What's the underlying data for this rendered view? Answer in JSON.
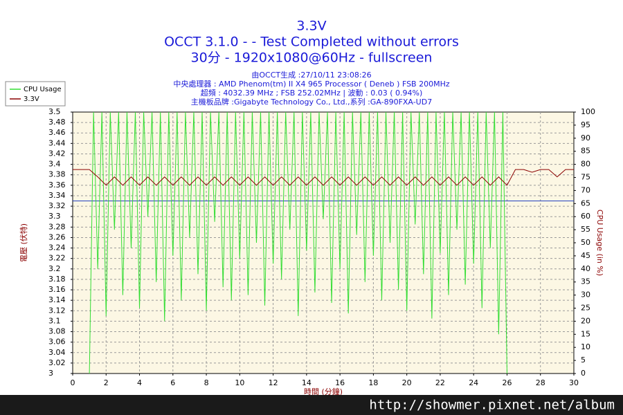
{
  "chart_data": {
    "type": "line",
    "title": "3.3V",
    "subtitle": [
      "OCCT 3.1.0 -  - Test Completed without errors",
      "30分 - 1920x1080@60Hz - fullscreen"
    ],
    "info": [
      "由OCCT生成 :27/10/11 23:08:26",
      "中央處理器 : AMD Phenom(tm) II X4 965 Processor ( Deneb ) FSB 200MHz",
      "超頻 : 4032.39 MHz ; FSB 252.02MHz | 波動 : 0.03 ( 0.94%)",
      "主機板品牌 :Gigabyte Technology Co., Ltd.,系列 :GA-890FXA-UD7"
    ],
    "xlabel": "時間 (分鐘)",
    "ylabel": "電壓 (伏特)",
    "y2label": "CPU Usage (in %)",
    "watermark": "http://showmer.pixnet.net/album",
    "xlim": [
      0,
      30
    ],
    "xticks": [
      0,
      2,
      4,
      6,
      8,
      10,
      12,
      14,
      16,
      18,
      20,
      22,
      24,
      26,
      28,
      30
    ],
    "ylim": [
      3,
      3.5
    ],
    "yticks": [
      3,
      3.02,
      3.04,
      3.06,
      3.08,
      3.1,
      3.12,
      3.14,
      3.16,
      3.18,
      3.2,
      3.22,
      3.24,
      3.26,
      3.28,
      3.3,
      3.32,
      3.34,
      3.36,
      3.38,
      3.4,
      3.42,
      3.44,
      3.46,
      3.48,
      3.5
    ],
    "y2lim": [
      0,
      100
    ],
    "y2ticks": [
      0,
      5,
      10,
      15,
      20,
      25,
      30,
      35,
      40,
      45,
      50,
      55,
      60,
      65,
      70,
      75,
      80,
      85,
      90,
      95,
      100
    ],
    "grid": true,
    "hlines": [
      {
        "value": 3.33,
        "color": "#2040c0"
      }
    ],
    "series": [
      {
        "name": "CPU Usage",
        "color": "#33dd33",
        "axis": "y2",
        "x": [
          1,
          1.25,
          1.5,
          1.75,
          2,
          2.25,
          2.5,
          2.75,
          3,
          3.25,
          3.5,
          3.75,
          4,
          4.25,
          4.5,
          4.75,
          5,
          5.25,
          5.5,
          5.75,
          6,
          6.25,
          6.5,
          6.75,
          7,
          7.25,
          7.5,
          7.75,
          8,
          8.25,
          8.5,
          8.75,
          9,
          9.25,
          9.5,
          9.75,
          10,
          10.25,
          10.5,
          10.75,
          11,
          11.25,
          11.5,
          11.75,
          12,
          12.25,
          12.5,
          12.75,
          13,
          13.25,
          13.5,
          13.75,
          14,
          14.25,
          14.5,
          14.75,
          15,
          15.25,
          15.5,
          15.75,
          16,
          16.25,
          16.5,
          16.75,
          17,
          17.25,
          17.5,
          17.75,
          18,
          18.25,
          18.5,
          18.75,
          19,
          19.25,
          19.5,
          19.75,
          20,
          20.25,
          20.5,
          20.75,
          21,
          21.25,
          21.5,
          21.75,
          22,
          22.25,
          22.5,
          22.75,
          23,
          23.25,
          23.5,
          23.75,
          24,
          24.25,
          24.5,
          24.75,
          25,
          25.25,
          25.5,
          25.75,
          26
        ],
        "values": [
          0,
          100,
          40,
          100,
          22,
          100,
          55,
          100,
          30,
          100,
          48,
          100,
          25,
          100,
          60,
          100,
          35,
          100,
          20,
          100,
          45,
          100,
          28,
          100,
          52,
          100,
          38,
          100,
          24,
          100,
          58,
          100,
          33,
          100,
          28,
          100,
          44,
          100,
          30,
          100,
          50,
          100,
          26,
          100,
          42,
          100,
          36,
          100,
          55,
          100,
          22,
          100,
          47,
          100,
          31,
          100,
          59,
          100,
          27,
          100,
          40,
          100,
          23,
          100,
          53,
          100,
          35,
          100,
          45,
          100,
          28,
          100,
          50,
          100,
          32,
          100,
          24,
          100,
          57,
          100,
          38,
          100,
          21,
          100,
          46,
          100,
          30,
          100,
          55,
          100,
          34,
          100,
          42,
          100,
          25,
          100,
          48,
          100,
          15,
          100,
          0
        ]
      },
      {
        "name": "3.3V",
        "color": "#8b0000",
        "x": [
          0,
          0.5,
          1,
          1.5,
          2,
          2.5,
          3,
          3.5,
          4,
          4.5,
          5,
          5.5,
          6,
          6.5,
          7,
          7.5,
          8,
          8.5,
          9,
          9.5,
          10,
          10.5,
          11,
          11.5,
          12,
          12.5,
          13,
          13.5,
          14,
          14.5,
          15,
          15.5,
          16,
          16.5,
          17,
          17.5,
          18,
          18.5,
          19,
          19.5,
          20,
          20.5,
          21,
          21.5,
          22,
          22.5,
          23,
          23.5,
          24,
          24.5,
          25,
          25.5,
          26,
          26.5,
          27,
          27.5,
          28,
          28.5,
          29,
          29.5,
          30
        ],
        "values": [
          3.39,
          3.39,
          3.39,
          3.376,
          3.36,
          3.376,
          3.36,
          3.376,
          3.36,
          3.376,
          3.36,
          3.376,
          3.36,
          3.376,
          3.36,
          3.376,
          3.36,
          3.376,
          3.36,
          3.376,
          3.36,
          3.376,
          3.36,
          3.376,
          3.36,
          3.376,
          3.36,
          3.376,
          3.36,
          3.376,
          3.36,
          3.376,
          3.36,
          3.376,
          3.36,
          3.376,
          3.36,
          3.376,
          3.36,
          3.376,
          3.36,
          3.376,
          3.36,
          3.376,
          3.36,
          3.376,
          3.36,
          3.376,
          3.36,
          3.376,
          3.36,
          3.376,
          3.36,
          3.39,
          3.39,
          3.385,
          3.39,
          3.39,
          3.376,
          3.39,
          3.39
        ]
      }
    ]
  }
}
